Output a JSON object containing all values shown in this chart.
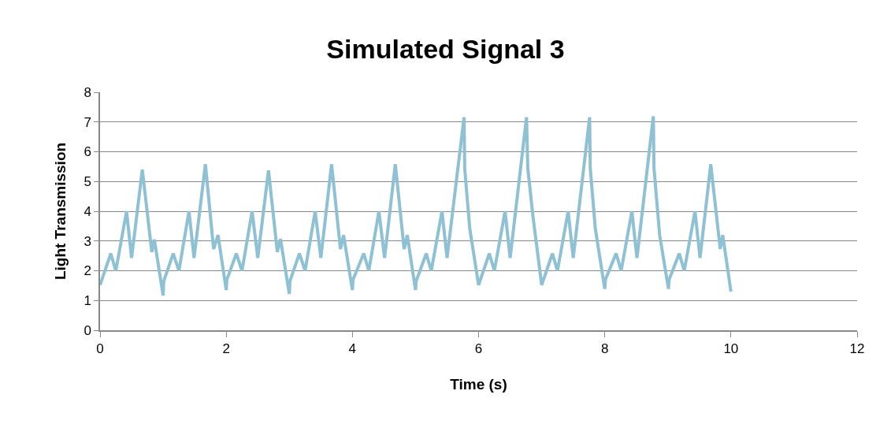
{
  "chart_data": {
    "type": "line",
    "title": "Simulated Signal 3",
    "xlabel": "Time (s)",
    "ylabel": "Light Transmission",
    "series": [
      {
        "color": "#8fc1d4",
        "x": [
          0,
          0.17,
          0.25,
          0.42,
          0.5,
          0.67,
          0.82,
          0.86,
          1.0,
          1.01,
          1.16,
          1.25,
          1.41,
          1.49,
          1.67,
          1.8,
          1.87,
          2.0,
          2.01,
          2.16,
          2.25,
          2.41,
          2.5,
          2.67,
          2.81,
          2.86,
          3.0,
          3.01,
          3.16,
          3.25,
          3.41,
          3.5,
          3.67,
          3.81,
          3.86,
          4.0,
          4.01,
          4.18,
          4.26,
          4.42,
          4.51,
          4.68,
          4.82,
          4.87,
          5.0,
          5.01,
          5.17,
          5.25,
          5.42,
          5.5,
          5.77,
          5.78,
          5.86,
          6.0,
          6.17,
          6.25,
          6.42,
          6.5,
          6.76,
          6.78,
          6.86,
          7.0,
          7.17,
          7.25,
          7.42,
          7.5,
          7.76,
          7.77,
          7.85,
          8.0,
          8.01,
          8.18,
          8.26,
          8.43,
          8.51,
          8.77,
          8.78,
          8.87,
          9.01,
          9.02,
          9.18,
          9.26,
          9.43,
          9.51,
          9.68,
          9.83,
          9.87,
          10.0
        ],
        "values": [
          1.52,
          2.58,
          2.0,
          4.0,
          2.43,
          5.4,
          2.63,
          3.05,
          1.17,
          1.65,
          2.58,
          2.0,
          4.0,
          2.43,
          5.58,
          2.73,
          3.2,
          1.35,
          1.7,
          2.58,
          2.0,
          4.0,
          2.43,
          5.37,
          2.63,
          3.07,
          1.22,
          1.65,
          2.58,
          2.0,
          4.0,
          2.43,
          5.58,
          2.73,
          3.2,
          1.35,
          1.7,
          2.58,
          2.0,
          4.0,
          2.43,
          5.58,
          2.73,
          3.2,
          1.35,
          1.65,
          2.58,
          2.0,
          4.0,
          2.43,
          7.16,
          5.44,
          3.42,
          1.52,
          2.58,
          2.0,
          4.0,
          2.43,
          7.16,
          5.45,
          3.86,
          1.52,
          2.58,
          2.0,
          4.0,
          2.43,
          7.16,
          5.45,
          3.42,
          1.39,
          1.7,
          2.58,
          2.0,
          4.0,
          2.43,
          7.19,
          5.45,
          3.2,
          1.39,
          1.7,
          2.58,
          2.0,
          4.0,
          2.43,
          5.58,
          2.73,
          3.2,
          1.3
        ]
      }
    ],
    "xlim": [
      0,
      12
    ],
    "xticks": [
      0,
      2,
      4,
      6,
      8,
      10,
      12
    ],
    "ylim": [
      0,
      8
    ],
    "yticks": [
      0,
      1,
      2,
      3,
      4,
      5,
      6,
      7,
      8
    ],
    "grid": "y",
    "marker": "none",
    "line_style": "solid"
  }
}
